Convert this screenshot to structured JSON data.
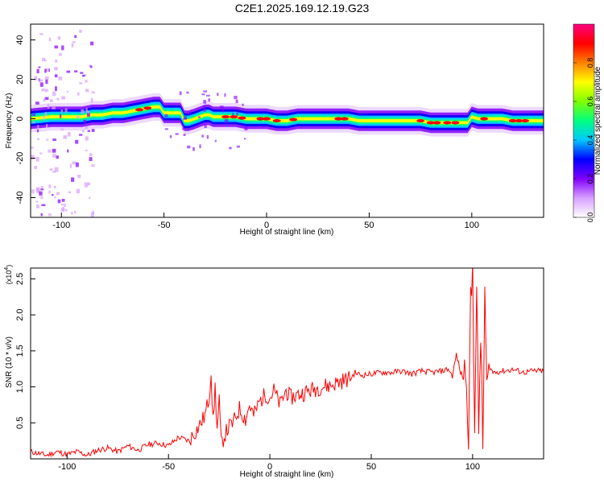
{
  "title": "C2E1.2025.169.12.19.G23",
  "chart_data": [
    {
      "type": "heatmap",
      "xlabel": "Height of straight line (km)",
      "ylabel": "Frequency (Hz)",
      "xlim": [
        -115,
        135
      ],
      "ylim": [
        -50,
        48
      ],
      "x_ticks": [
        -100,
        -50,
        0,
        50,
        100
      ],
      "y_ticks": [
        -40,
        -20,
        0,
        20,
        40
      ],
      "colorbar": {
        "label": "Normalized spectral amplitude",
        "range": [
          0,
          1
        ],
        "ticks": [
          "0.0",
          "0.2",
          "0.4",
          "0.6",
          "0.8"
        ],
        "colors": [
          "#ffffff",
          "#d8a0ff",
          "#8000ff",
          "#0000ff",
          "#00c8ff",
          "#00ff80",
          "#80ff00",
          "#ffff00",
          "#ff8000",
          "#ff0000",
          "#ff0080"
        ]
      },
      "ridge": {
        "x": [
          -115,
          -105,
          -100,
          -95,
          -90,
          -85,
          -80,
          -75,
          -70,
          -65,
          -60,
          -55,
          -52,
          -50,
          -45,
          -42,
          -40,
          -38,
          -35,
          -30,
          -28,
          -26,
          -25,
          -20,
          -15,
          -10,
          -5,
          0,
          5,
          10,
          15,
          20,
          25,
          30,
          35,
          40,
          45,
          50,
          55,
          60,
          65,
          70,
          75,
          80,
          85,
          90,
          95,
          98,
          100,
          103,
          105,
          110,
          115,
          120,
          125,
          130,
          135
        ],
        "y": [
          0,
          1,
          1,
          1,
          1,
          2,
          2,
          3,
          3,
          4,
          5,
          6,
          6,
          3,
          3,
          3,
          -1,
          -1,
          0,
          2,
          2,
          1,
          1,
          1,
          1,
          0,
          0,
          0,
          -1,
          -1,
          0,
          0,
          0,
          0,
          0,
          0,
          -1,
          -1,
          -1,
          -1,
          -1,
          -1,
          -1,
          -2,
          -2,
          -2,
          -2,
          -2,
          1,
          0,
          0,
          0,
          0,
          -1,
          -1,
          -1,
          -1
        ]
      }
    },
    {
      "type": "line",
      "xlabel": "Height of straight line (km)",
      "ylabel": "SNR (10 * v/v)",
      "y_scale_label": "(x10",
      "y_scale_exponent": "4",
      "y_scale_suffix": ")",
      "xlim": [
        -118,
        135
      ],
      "ylim": [
        0,
        2.65
      ],
      "x_ticks": [
        -100,
        -50,
        0,
        50,
        100
      ],
      "y_ticks": [
        "0.5",
        "1.0",
        "1.5",
        "2.0",
        "2.5"
      ],
      "line_color": "#ff0000",
      "series": [
        {
          "x": [
            -118,
            -115,
            -110,
            -105,
            -100,
            -95,
            -90,
            -85,
            -80,
            -75,
            -70,
            -65,
            -60,
            -55,
            -50,
            -45,
            -40,
            -35,
            -32,
            -30,
            -29,
            -28,
            -27,
            -26,
            -25,
            -24,
            -22,
            -20,
            -18,
            -15,
            -12,
            -10,
            -8,
            -5,
            -2,
            0,
            2,
            5,
            8,
            10,
            15,
            20,
            25,
            30,
            35,
            40,
            42,
            45,
            50,
            55,
            60,
            65,
            70,
            75,
            80,
            85,
            88,
            90,
            92,
            94,
            95,
            96,
            97,
            98,
            99,
            100,
            101,
            102,
            103,
            104,
            105,
            106,
            107,
            108,
            110,
            115,
            120,
            125,
            130,
            135
          ],
          "y": [
            0.1,
            0.08,
            0.05,
            0.1,
            0.06,
            0.1,
            0.05,
            0.12,
            0.15,
            0.1,
            0.18,
            0.12,
            0.2,
            0.22,
            0.18,
            0.3,
            0.25,
            0.45,
            0.6,
            0.85,
            1.22,
            0.5,
            1.0,
            0.4,
            0.8,
            0.2,
            0.35,
            0.45,
            0.5,
            0.7,
            0.55,
            0.75,
            0.6,
            0.8,
            0.9,
            0.85,
            0.95,
            0.75,
            0.95,
            0.85,
            0.9,
            0.95,
            1.0,
            1.02,
            1.08,
            1.12,
            1.2,
            1.16,
            1.18,
            1.2,
            1.2,
            1.22,
            1.18,
            1.22,
            1.2,
            1.22,
            1.25,
            1.15,
            1.45,
            1.2,
            1.15,
            1.2,
            1.25,
            0.3,
            2.1,
            2.62,
            0.6,
            2.2,
            0.4,
            1.8,
            0.05,
            2.35,
            0.9,
            1.3,
            1.2,
            1.22,
            1.24,
            1.2,
            1.22,
            1.22
          ]
        }
      ]
    }
  ]
}
